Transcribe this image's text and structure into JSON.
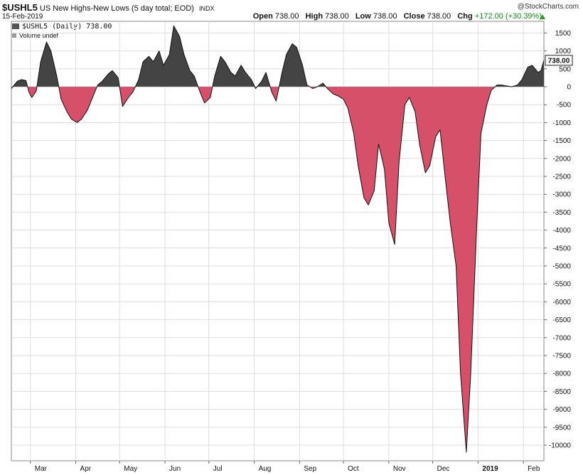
{
  "header": {
    "symbol": "$USHL5",
    "description": "US New Highs-New Lows (5 day total; EOD)",
    "exchange": "INDX",
    "date": "15-Feb-2019",
    "watermark": "@StockCharts.com",
    "open_label": "Open",
    "open": "738.00",
    "high_label": "High",
    "high": "738.00",
    "low_label": "Low",
    "low": "738.00",
    "close_label": "Close",
    "close": "738.00",
    "chg_label": "Chg",
    "chg": "+172.00 (+30.39%)"
  },
  "legend": {
    "series_label": "$USHL5 (Daily) 738.00",
    "volume_label": "Volume undef"
  },
  "colors": {
    "positive_fill": "#444444",
    "negative_fill": "#d6506a",
    "line": "#111111",
    "grid": "#dddddd"
  },
  "chart_data": {
    "type": "area",
    "title": "$USHL5 US New Highs-New Lows (5 day total; EOD)",
    "xlabel": "",
    "ylabel": "",
    "ylim": [
      -10400,
      1750
    ],
    "grid": true,
    "y_axis_side": "right",
    "last_value_label": "738.00",
    "y_ticks": [
      1500,
      1000,
      500,
      0,
      -500,
      -1000,
      -1500,
      -2000,
      -2500,
      -3000,
      -3500,
      -4000,
      -4500,
      -5000,
      -5500,
      -6000,
      -6500,
      -7000,
      -7500,
      -8000,
      -8500,
      -9000,
      -9500,
      -10000
    ],
    "y_tick_labels": [
      "1500",
      "1000",
      "500",
      "0",
      "-500",
      "-1000",
      "-1500",
      "-2000",
      "-2500",
      "-3000",
      "-3500",
      "-4000",
      "-4500",
      "-5000",
      "-5500",
      "-6000",
      "-6500",
      "-7000",
      "-7500",
      "-8000",
      "-8500",
      "-9000",
      "-9500",
      "-10000"
    ],
    "x_ticks": [
      {
        "date": "2018-03-01",
        "label": "Mar"
      },
      {
        "date": "2018-04-01",
        "label": "Apr"
      },
      {
        "date": "2018-05-01",
        "label": "May"
      },
      {
        "date": "2018-06-01",
        "label": "Jun"
      },
      {
        "date": "2018-07-01",
        "label": "Jul"
      },
      {
        "date": "2018-08-01",
        "label": "Aug"
      },
      {
        "date": "2018-09-01",
        "label": "Sep"
      },
      {
        "date": "2018-10-01",
        "label": "Oct"
      },
      {
        "date": "2018-11-01",
        "label": "Nov"
      },
      {
        "date": "2018-12-01",
        "label": "Dec"
      },
      {
        "date": "2019-01-01",
        "label": "2019",
        "bold": true
      },
      {
        "date": "2019-02-01",
        "label": "Feb"
      }
    ],
    "series": [
      {
        "name": "$USHL5",
        "points": [
          [
            "2018-02-16",
            -50
          ],
          [
            "2018-02-20",
            150
          ],
          [
            "2018-02-23",
            200
          ],
          [
            "2018-02-26",
            170
          ],
          [
            "2018-02-28",
            -150
          ],
          [
            "2018-03-02",
            -300
          ],
          [
            "2018-03-05",
            -120
          ],
          [
            "2018-03-08",
            700
          ],
          [
            "2018-03-12",
            1250
          ],
          [
            "2018-03-15",
            1000
          ],
          [
            "2018-03-19",
            300
          ],
          [
            "2018-03-22",
            -350
          ],
          [
            "2018-03-26",
            -700
          ],
          [
            "2018-03-29",
            -900
          ],
          [
            "2018-04-02",
            -1000
          ],
          [
            "2018-04-05",
            -900
          ],
          [
            "2018-04-09",
            -650
          ],
          [
            "2018-04-12",
            -350
          ],
          [
            "2018-04-16",
            50
          ],
          [
            "2018-04-19",
            150
          ],
          [
            "2018-04-23",
            350
          ],
          [
            "2018-04-26",
            450
          ],
          [
            "2018-04-30",
            250
          ],
          [
            "2018-05-03",
            -550
          ],
          [
            "2018-05-07",
            -300
          ],
          [
            "2018-05-10",
            -150
          ],
          [
            "2018-05-14",
            200
          ],
          [
            "2018-05-17",
            700
          ],
          [
            "2018-05-21",
            850
          ],
          [
            "2018-05-24",
            700
          ],
          [
            "2018-05-28",
            1000
          ],
          [
            "2018-05-31",
            600
          ],
          [
            "2018-06-04",
            900
          ],
          [
            "2018-06-07",
            1700
          ],
          [
            "2018-06-11",
            1400
          ],
          [
            "2018-06-14",
            900
          ],
          [
            "2018-06-18",
            450
          ],
          [
            "2018-06-21",
            300
          ],
          [
            "2018-06-25",
            -150
          ],
          [
            "2018-06-28",
            -450
          ],
          [
            "2018-07-02",
            -300
          ],
          [
            "2018-07-05",
            300
          ],
          [
            "2018-07-09",
            850
          ],
          [
            "2018-07-12",
            700
          ],
          [
            "2018-07-16",
            400
          ],
          [
            "2018-07-19",
            300
          ],
          [
            "2018-07-23",
            600
          ],
          [
            "2018-07-26",
            400
          ],
          [
            "2018-07-30",
            200
          ],
          [
            "2018-08-02",
            -50
          ],
          [
            "2018-08-06",
            150
          ],
          [
            "2018-08-09",
            400
          ],
          [
            "2018-08-13",
            -150
          ],
          [
            "2018-08-16",
            -400
          ],
          [
            "2018-08-20",
            400
          ],
          [
            "2018-08-23",
            900
          ],
          [
            "2018-08-27",
            1200
          ],
          [
            "2018-08-30",
            1100
          ],
          [
            "2018-09-03",
            600
          ],
          [
            "2018-09-06",
            50
          ],
          [
            "2018-09-10",
            -50
          ],
          [
            "2018-09-13",
            0
          ],
          [
            "2018-09-17",
            100
          ],
          [
            "2018-09-20",
            -50
          ],
          [
            "2018-09-24",
            -200
          ],
          [
            "2018-09-27",
            -250
          ],
          [
            "2018-10-01",
            -350
          ],
          [
            "2018-10-04",
            -600
          ],
          [
            "2018-10-08",
            -1300
          ],
          [
            "2018-10-11",
            -2200
          ],
          [
            "2018-10-15",
            -3100
          ],
          [
            "2018-10-18",
            -3300
          ],
          [
            "2018-10-22",
            -2900
          ],
          [
            "2018-10-25",
            -1600
          ],
          [
            "2018-10-29",
            -2300
          ],
          [
            "2018-11-01",
            -3800
          ],
          [
            "2018-11-05",
            -4400
          ],
          [
            "2018-11-08",
            -2100
          ],
          [
            "2018-11-12",
            -500
          ],
          [
            "2018-11-15",
            -300
          ],
          [
            "2018-11-19",
            -700
          ],
          [
            "2018-11-22",
            -1600
          ],
          [
            "2018-11-26",
            -2400
          ],
          [
            "2018-11-29",
            -2200
          ],
          [
            "2018-12-03",
            -1400
          ],
          [
            "2018-12-06",
            -1200
          ],
          [
            "2018-12-10",
            -2700
          ],
          [
            "2018-12-13",
            -3800
          ],
          [
            "2018-12-17",
            -5000
          ],
          [
            "2018-12-20",
            -8000
          ],
          [
            "2018-12-24",
            -10200
          ],
          [
            "2018-12-27",
            -8000
          ],
          [
            "2018-12-31",
            -4000
          ],
          [
            "2019-01-03",
            -1300
          ],
          [
            "2019-01-07",
            -500
          ],
          [
            "2019-01-10",
            -100
          ],
          [
            "2019-01-14",
            50
          ],
          [
            "2019-01-17",
            50
          ],
          [
            "2019-01-21",
            20
          ],
          [
            "2019-01-24",
            0
          ],
          [
            "2019-01-28",
            50
          ],
          [
            "2019-01-31",
            200
          ],
          [
            "2019-02-04",
            550
          ],
          [
            "2019-02-07",
            600
          ],
          [
            "2019-02-11",
            400
          ],
          [
            "2019-02-13",
            450
          ],
          [
            "2019-02-15",
            738
          ]
        ]
      }
    ]
  }
}
